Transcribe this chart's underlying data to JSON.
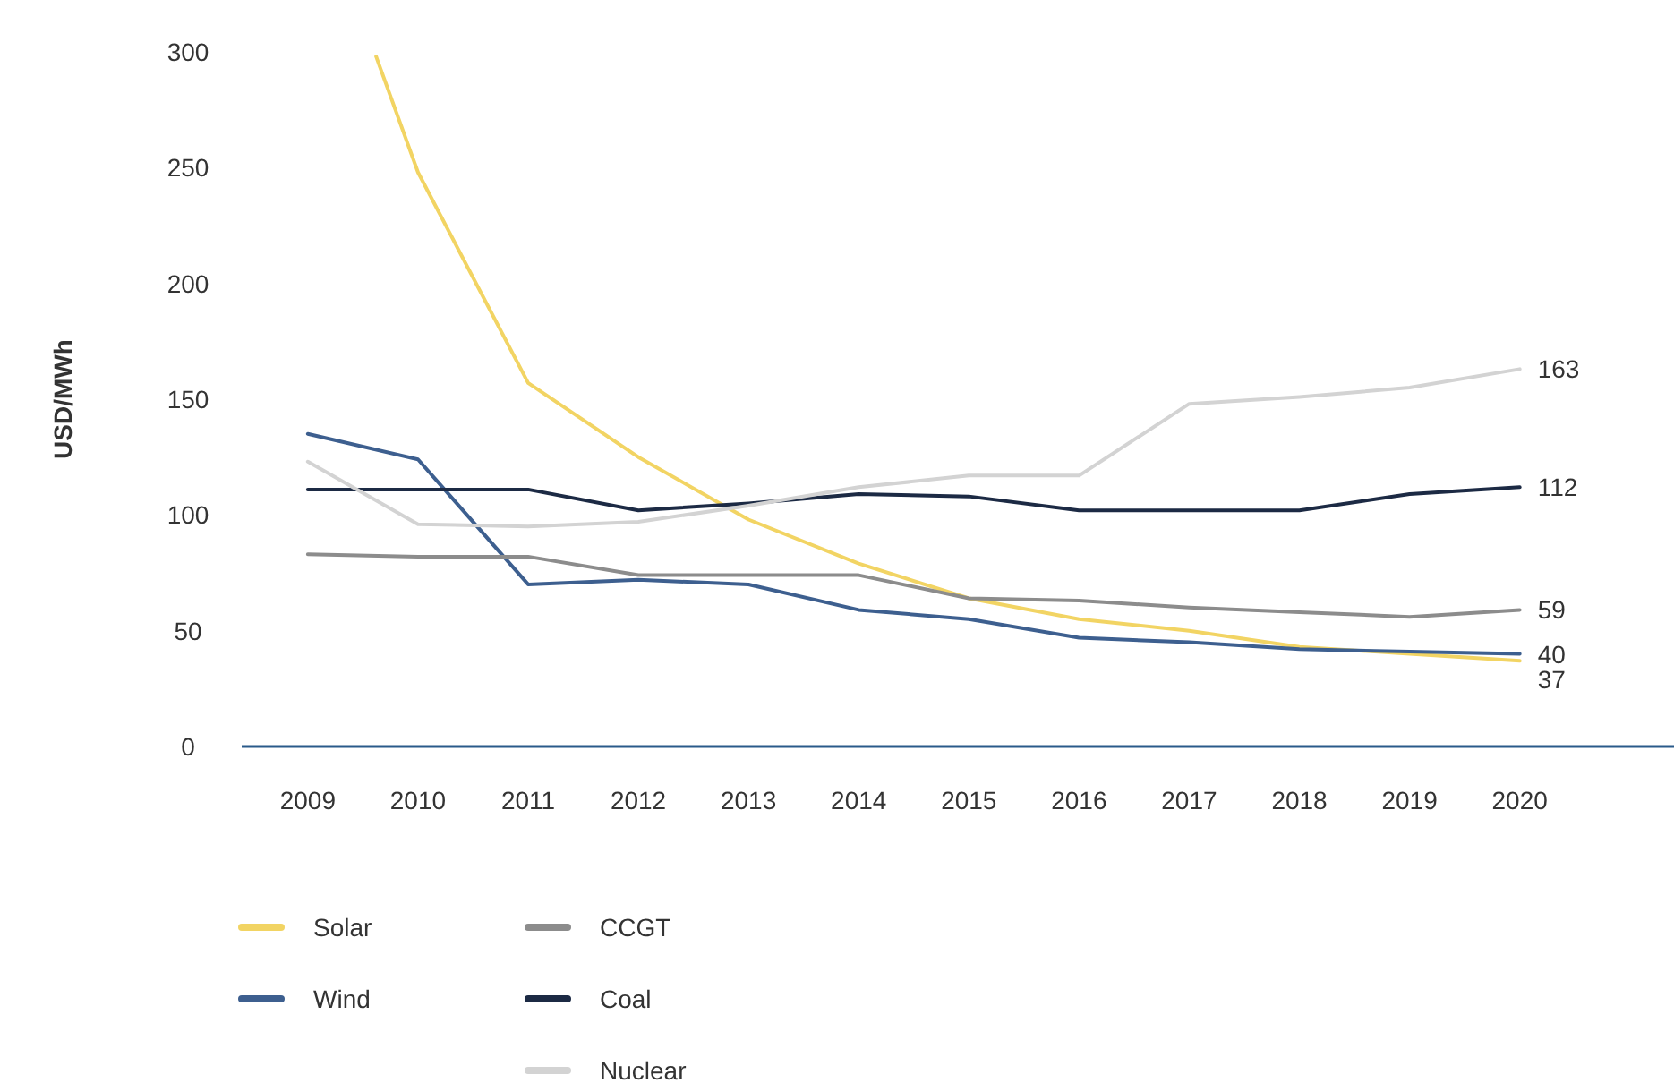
{
  "chart_data": {
    "type": "line",
    "ylabel": "USD/MWh",
    "x": [
      2009,
      2010,
      2011,
      2012,
      2013,
      2014,
      2015,
      2016,
      2017,
      2018,
      2019,
      2020
    ],
    "xlim": [
      2008.4,
      2021.4
    ],
    "xticks": [
      2009,
      2010,
      2011,
      2012,
      2013,
      2014,
      2015,
      2016,
      2017,
      2018,
      2019,
      2020
    ],
    "ylim": [
      0,
      300
    ],
    "yticks": [
      0,
      50,
      100,
      150,
      200,
      250,
      300
    ],
    "grid": false,
    "legend": "bottom left",
    "marker": "none",
    "line_style": "solid",
    "series": [
      {
        "name": "Solar",
        "color": "#f2d463",
        "x": [
          2009.62,
          2010,
          2011,
          2012,
          2013,
          2014,
          2015,
          2016,
          2017,
          2018,
          2019,
          2020
        ],
        "values": [
          298,
          248,
          157,
          125,
          98,
          79,
          64,
          55,
          50,
          43,
          40,
          37
        ],
        "value_labels": [
          null,
          null,
          null,
          null,
          null,
          null,
          null,
          null,
          null,
          null,
          null,
          "37"
        ]
      },
      {
        "name": "Wind",
        "color": "#3d5f8f",
        "values": [
          135,
          124,
          70,
          72,
          70,
          59,
          55,
          47,
          45,
          42,
          41,
          40
        ],
        "value_labels": [
          null,
          null,
          null,
          null,
          null,
          null,
          null,
          null,
          null,
          null,
          null,
          "40"
        ]
      },
      {
        "name": "CCGT",
        "color": "#8c8c8c",
        "values": [
          83,
          82,
          82,
          74,
          74,
          74,
          64,
          63,
          60,
          58,
          56,
          59
        ],
        "value_labels": [
          null,
          null,
          null,
          null,
          null,
          null,
          null,
          null,
          null,
          null,
          null,
          "59"
        ]
      },
      {
        "name": "Coal",
        "color": "#1c2a44",
        "values": [
          111,
          111,
          111,
          102,
          105,
          109,
          108,
          102,
          102,
          102,
          109,
          112
        ],
        "value_labels": [
          null,
          null,
          null,
          null,
          null,
          null,
          null,
          null,
          null,
          null,
          null,
          "112"
        ]
      },
      {
        "name": "Nuclear",
        "color": "#d3d3d3",
        "values": [
          123,
          96,
          95,
          97,
          104,
          112,
          117,
          117,
          148,
          151,
          155,
          163
        ],
        "value_labels": [
          null,
          null,
          null,
          null,
          null,
          null,
          null,
          null,
          null,
          null,
          null,
          "163"
        ]
      }
    ]
  }
}
